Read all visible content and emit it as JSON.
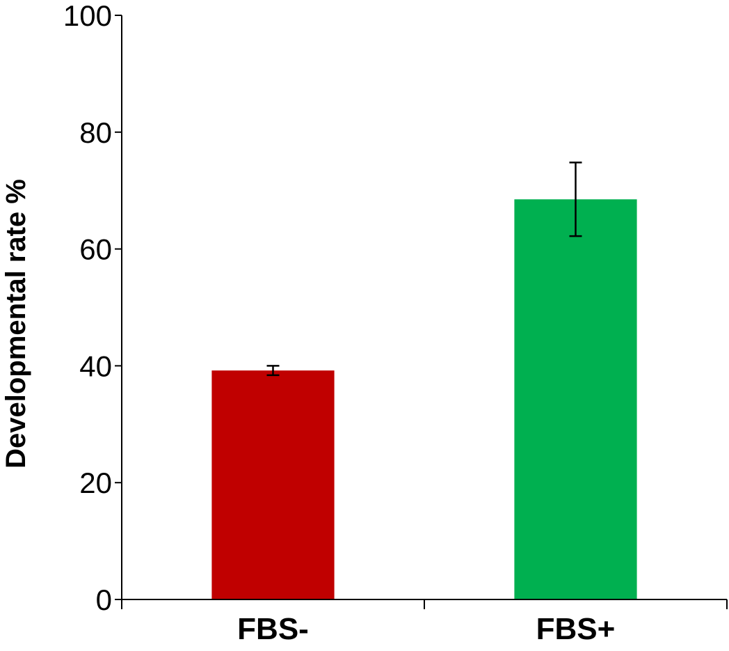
{
  "chart_data": {
    "type": "bar",
    "title": "",
    "xlabel": "",
    "ylabel": "Developmental rate %",
    "ylim": [
      0,
      100
    ],
    "yticks": [
      0,
      20,
      40,
      60,
      80,
      100
    ],
    "grid": false,
    "legend": "none",
    "categories": [
      "FBS-",
      "FBS+"
    ],
    "values": [
      39.2,
      68.5
    ],
    "errors": [
      0.8,
      6.3
    ],
    "colors": [
      "#C00000",
      "#00B050"
    ]
  }
}
